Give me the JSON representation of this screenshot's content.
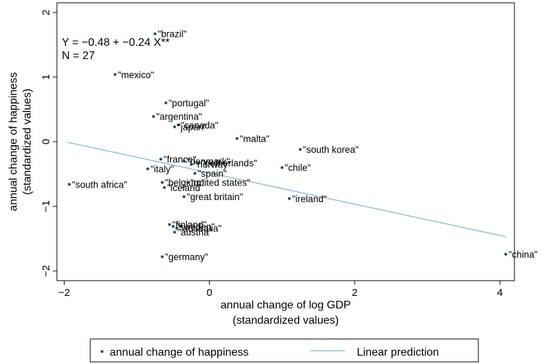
{
  "chart_data": {
    "type": "scatter",
    "xlabel": [
      "annual change of log GDP",
      "(standardized values)"
    ],
    "ylabel": [
      "annual change of happiness",
      "(standardized values)"
    ],
    "xlim": [
      -2.1,
      4.2
    ],
    "ylim": [
      -2.15,
      2.15
    ],
    "xticks": [
      -2,
      0,
      2,
      4
    ],
    "yticks": [
      -2,
      -1,
      0,
      1,
      2
    ],
    "grid": false,
    "annotations": [
      "Y = −0.48 + −0.24 X**",
      "N = 27"
    ],
    "legend": {
      "position": "bottom",
      "entries": [
        "annual change of happiness",
        "Linear prediction"
      ]
    },
    "series": [
      {
        "name": "annual change of happiness",
        "kind": "scatter",
        "color": "#1a476f",
        "points": [
          {
            "label": "\"brazil\"",
            "x": -0.75,
            "y": 1.67
          },
          {
            "label": "\"mexico\"",
            "x": -1.3,
            "y": 1.04
          },
          {
            "label": "\"portugal\"",
            "x": -0.6,
            "y": 0.6
          },
          {
            "label": "\"argentina\"",
            "x": -0.77,
            "y": 0.39
          },
          {
            "label": "\"canada\"",
            "x": -0.43,
            "y": 0.26
          },
          {
            "label": "\"japan\"",
            "x": -0.48,
            "y": 0.23
          },
          {
            "label": "\"malta\"",
            "x": 0.38,
            "y": 0.05
          },
          {
            "label": "\"south korea\"",
            "x": 1.25,
            "y": -0.12
          },
          {
            "label": "\"france\"",
            "x": -0.67,
            "y": -0.27
          },
          {
            "label": "\"denmark\"",
            "x": -0.35,
            "y": -0.3
          },
          {
            "label": "\"netherlands\"",
            "x": -0.15,
            "y": -0.33
          },
          {
            "label": "\"norway\"",
            "x": -0.25,
            "y": -0.35
          },
          {
            "label": "\"chile\"",
            "x": 1.0,
            "y": -0.4
          },
          {
            "label": "\"italy\"",
            "x": -0.85,
            "y": -0.42
          },
          {
            "label": "\"spain\"",
            "x": -0.2,
            "y": -0.49
          },
          {
            "label": "\"south africa\"",
            "x": -1.93,
            "y": -0.66
          },
          {
            "label": "\"belgium\"",
            "x": -0.65,
            "y": -0.63
          },
          {
            "label": "\"united states\"",
            "x": -0.3,
            "y": -0.63
          },
          {
            "label": "\"iceland\"",
            "x": -0.62,
            "y": -0.71
          },
          {
            "label": "\"great britain\"",
            "x": -0.35,
            "y": -0.85
          },
          {
            "label": "\"ireland\"",
            "x": 1.1,
            "y": -0.88
          },
          {
            "label": "\"finland\"",
            "x": -0.55,
            "y": -1.28
          },
          {
            "label": "\"sweden\"",
            "x": -0.5,
            "y": -1.31
          },
          {
            "label": "\"australia\"",
            "x": -0.45,
            "y": -1.34
          },
          {
            "label": "\"austria\"",
            "x": -0.48,
            "y": -1.4
          },
          {
            "label": "\"germany\"",
            "x": -0.65,
            "y": -1.78
          },
          {
            "label": "\"china\"",
            "x": 4.08,
            "y": -1.74
          }
        ]
      },
      {
        "name": "Linear prediction",
        "kind": "line",
        "color": "#90c0de",
        "x": [
          -1.95,
          4.08
        ],
        "y": [
          -0.01,
          -1.47
        ]
      }
    ]
  }
}
